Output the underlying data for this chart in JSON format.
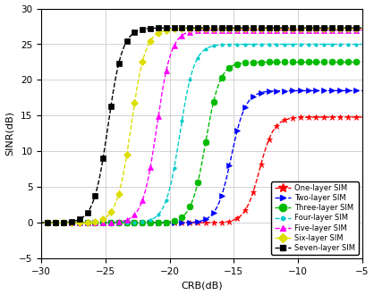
{
  "title": "",
  "xlabel": "CRB(dB)",
  "ylabel": "SINR(dB)",
  "xlim": [
    -30,
    -5
  ],
  "ylim": [
    -5,
    30
  ],
  "xticks": [
    -30,
    -25,
    -20,
    -15,
    -10,
    -5
  ],
  "yticks": [
    -5,
    0,
    5,
    10,
    15,
    20,
    25,
    30
  ],
  "series": [
    {
      "label": "One-layer SIM",
      "color": "#ff0000",
      "marker": "*",
      "x_inflection": -13.0,
      "y_max": 14.8,
      "steepness": 1.8,
      "markersize": 5
    },
    {
      "label": "Two-layer SIM",
      "color": "#0000ff",
      "marker": ">",
      "x_inflection": -15.2,
      "y_max": 18.5,
      "steepness": 1.8,
      "markersize": 4
    },
    {
      "label": "Three-layer SIM",
      "color": "#00bb00",
      "marker": "o",
      "x_inflection": -17.2,
      "y_max": 22.5,
      "steepness": 1.8,
      "markersize": 5
    },
    {
      "label": "Four-layer SIM",
      "color": "#00cccc",
      "marker": "o",
      "x_inflection": -19.2,
      "y_max": 25.0,
      "steepness": 1.8,
      "markersize": 2
    },
    {
      "label": "Five-layer SIM",
      "color": "#ff00ff",
      "marker": "^",
      "x_inflection": -21.0,
      "y_max": 27.0,
      "steepness": 1.8,
      "markersize": 5
    },
    {
      "label": "Six-layer SIM",
      "color": "#dddd00",
      "marker": "D",
      "x_inflection": -23.0,
      "y_max": 27.2,
      "steepness": 1.8,
      "markersize": 4
    },
    {
      "label": "Seven-layer SIM",
      "color": "#000000",
      "marker": "s",
      "x_inflection": -24.8,
      "y_max": 27.3,
      "steepness": 1.8,
      "markersize": 4
    }
  ],
  "background_color": "#ffffff",
  "grid_color": "#cccccc"
}
